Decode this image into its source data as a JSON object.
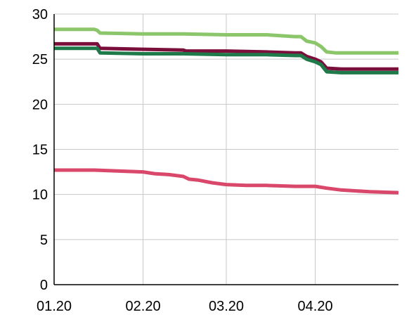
{
  "chart_data": {
    "type": "line",
    "title": "",
    "xlabel": "",
    "ylabel": "",
    "ylim": [
      0,
      30
    ],
    "yticks": [
      0,
      5,
      10,
      15,
      20,
      25,
      30
    ],
    "xlim": [
      "2020-01-01",
      "2020-04-30"
    ],
    "xticks": [
      {
        "date": "2020-01-01",
        "label": "01.20"
      },
      {
        "date": "2020-02-01",
        "label": "02.20"
      },
      {
        "date": "2020-03-01",
        "label": "03.20"
      },
      {
        "date": "2020-04-01",
        "label": "04.20"
      }
    ],
    "grid": true,
    "legend": "none",
    "series": [
      {
        "color": "#8cc66b",
        "points": [
          [
            "2020-01-01",
            28.3
          ],
          [
            "2020-01-15",
            28.3
          ],
          [
            "2020-01-16",
            28.2
          ],
          [
            "2020-01-17",
            27.9
          ],
          [
            "2020-02-01",
            27.8
          ],
          [
            "2020-02-15",
            27.8
          ],
          [
            "2020-03-01",
            27.7
          ],
          [
            "2020-03-15",
            27.7
          ],
          [
            "2020-03-25",
            27.5
          ],
          [
            "2020-03-27",
            27.5
          ],
          [
            "2020-03-29",
            27.0
          ],
          [
            "2020-04-01",
            26.8
          ],
          [
            "2020-04-03",
            26.4
          ],
          [
            "2020-04-05",
            25.8
          ],
          [
            "2020-04-08",
            25.7
          ],
          [
            "2020-04-30",
            25.7
          ]
        ]
      },
      {
        "color": "#7b0f3c",
        "points": [
          [
            "2020-01-01",
            26.7
          ],
          [
            "2020-01-15",
            26.7
          ],
          [
            "2020-01-16",
            26.7
          ],
          [
            "2020-01-17",
            26.2
          ],
          [
            "2020-02-01",
            26.1
          ],
          [
            "2020-02-15",
            26.0
          ],
          [
            "2020-02-16",
            25.9
          ],
          [
            "2020-03-01",
            25.9
          ],
          [
            "2020-03-15",
            25.8
          ],
          [
            "2020-03-25",
            25.7
          ],
          [
            "2020-03-27",
            25.7
          ],
          [
            "2020-03-29",
            25.3
          ],
          [
            "2020-04-01",
            25.0
          ],
          [
            "2020-04-03",
            24.7
          ],
          [
            "2020-04-05",
            24.0
          ],
          [
            "2020-04-10",
            23.9
          ],
          [
            "2020-04-30",
            23.9
          ]
        ]
      },
      {
        "color": "#1f7a4a",
        "points": [
          [
            "2020-01-01",
            26.2
          ],
          [
            "2020-01-15",
            26.2
          ],
          [
            "2020-01-16",
            26.2
          ],
          [
            "2020-01-17",
            25.7
          ],
          [
            "2020-02-01",
            25.6
          ],
          [
            "2020-02-15",
            25.6
          ],
          [
            "2020-03-01",
            25.5
          ],
          [
            "2020-03-15",
            25.5
          ],
          [
            "2020-03-25",
            25.4
          ],
          [
            "2020-03-27",
            25.4
          ],
          [
            "2020-03-29",
            25.0
          ],
          [
            "2020-04-01",
            24.7
          ],
          [
            "2020-04-03",
            24.4
          ],
          [
            "2020-04-05",
            23.6
          ],
          [
            "2020-04-10",
            23.5
          ],
          [
            "2020-04-30",
            23.5
          ]
        ]
      },
      {
        "color": "#d9486b",
        "points": [
          [
            "2020-01-01",
            12.7
          ],
          [
            "2020-01-15",
            12.7
          ],
          [
            "2020-02-01",
            12.5
          ],
          [
            "2020-02-05",
            12.3
          ],
          [
            "2020-02-10",
            12.2
          ],
          [
            "2020-02-15",
            12.0
          ],
          [
            "2020-02-17",
            11.7
          ],
          [
            "2020-02-20",
            11.6
          ],
          [
            "2020-02-25",
            11.3
          ],
          [
            "2020-03-01",
            11.1
          ],
          [
            "2020-03-08",
            11.0
          ],
          [
            "2020-03-15",
            11.0
          ],
          [
            "2020-03-25",
            10.9
          ],
          [
            "2020-04-01",
            10.9
          ],
          [
            "2020-04-05",
            10.7
          ],
          [
            "2020-04-10",
            10.5
          ],
          [
            "2020-04-20",
            10.3
          ],
          [
            "2020-04-30",
            10.2
          ]
        ]
      }
    ]
  }
}
